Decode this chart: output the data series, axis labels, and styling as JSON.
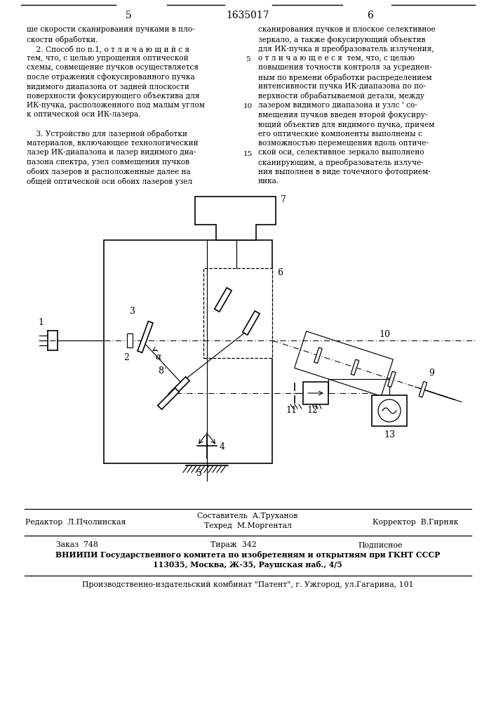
{
  "page_number_left": "5",
  "patent_number": "1635017",
  "page_number_right": "6",
  "col_left_lines": [
    "ше скорости сканирования пучками в пло-",
    "скости обработки.",
    "    2. Способ по п.1, о т л и ч а ю щ и й с я",
    "тем, что, с целью упрощения оптической",
    "схемы, совмещение пучков осуществляется",
    "после отражения сфокусированного пучка",
    "видимого диапазона от задней плоскости",
    "поверхности фокусирующего объектива для",
    "ИК-пучка, расположенного под малым углом",
    "к оптической оси ИК-лазера.",
    "",
    "    3. Устройство для лазерной обработки",
    "материалов, включающее технологический",
    "лазер ИК-диапазона и лазер видимого диа-",
    "пазона спектра, узел совмещения пучков",
    "обоих лазеров и расположенные далее на",
    "общей оптической оси обоих лазеров узел"
  ],
  "col_right_lines": [
    "сканирования пучков и плоское селективное",
    "зеркало, а также фокусирующий объектив",
    "для ИК-пучка и преобразователь излучения,",
    "о т л и ч а ю щ е е с я  тем, что, с целью",
    "повышения точности контроля за усреднен-",
    "ным по времени обработки распределением",
    "интенсивности пучка ИК-диапазона по по-",
    "верхности обрабатываемой детали, между",
    "лазером видимого диапазона и узлс ' со-",
    "вмещения пучков введен второй фокусиру-",
    "ющий объектив для видимого пучка, причем",
    "его оптические компоненты выполнены с",
    "возможностью перемещения вдоль оптиче-",
    "ской оси, селективное зеркало выполнено",
    "сканирующим, а преобразователь излуче-",
    "ния выполнен в виде точечного фотоприем-",
    "ника."
  ],
  "gutter_numbers": [
    [
      "5",
      3
    ],
    [
      "10",
      8
    ],
    [
      "15",
      13
    ]
  ],
  "footer_editor": "Редактор  Л.Пчолинская",
  "footer_composer": "Составитель  А.Труханов",
  "footer_techred": "Техред  М.Моргентал",
  "footer_corrector": "Корректор  В.Гирняк",
  "footer_order": "Заказ  748",
  "footer_circulation": "Тираж  342",
  "footer_subscription": "Подписное",
  "footer_vniipи": "ВНИИПИ Государственного комитета по изобретениям и открытиям при ГКНТ СССР",
  "footer_address": "113035, Москва, Ж-35, Раушская наб., 4/5",
  "footer_publisher": "Производственно-издательский комбинат \"Патент\", г. Ужгород, ул.Гагарина, 101",
  "bg_color": "#ffffff"
}
